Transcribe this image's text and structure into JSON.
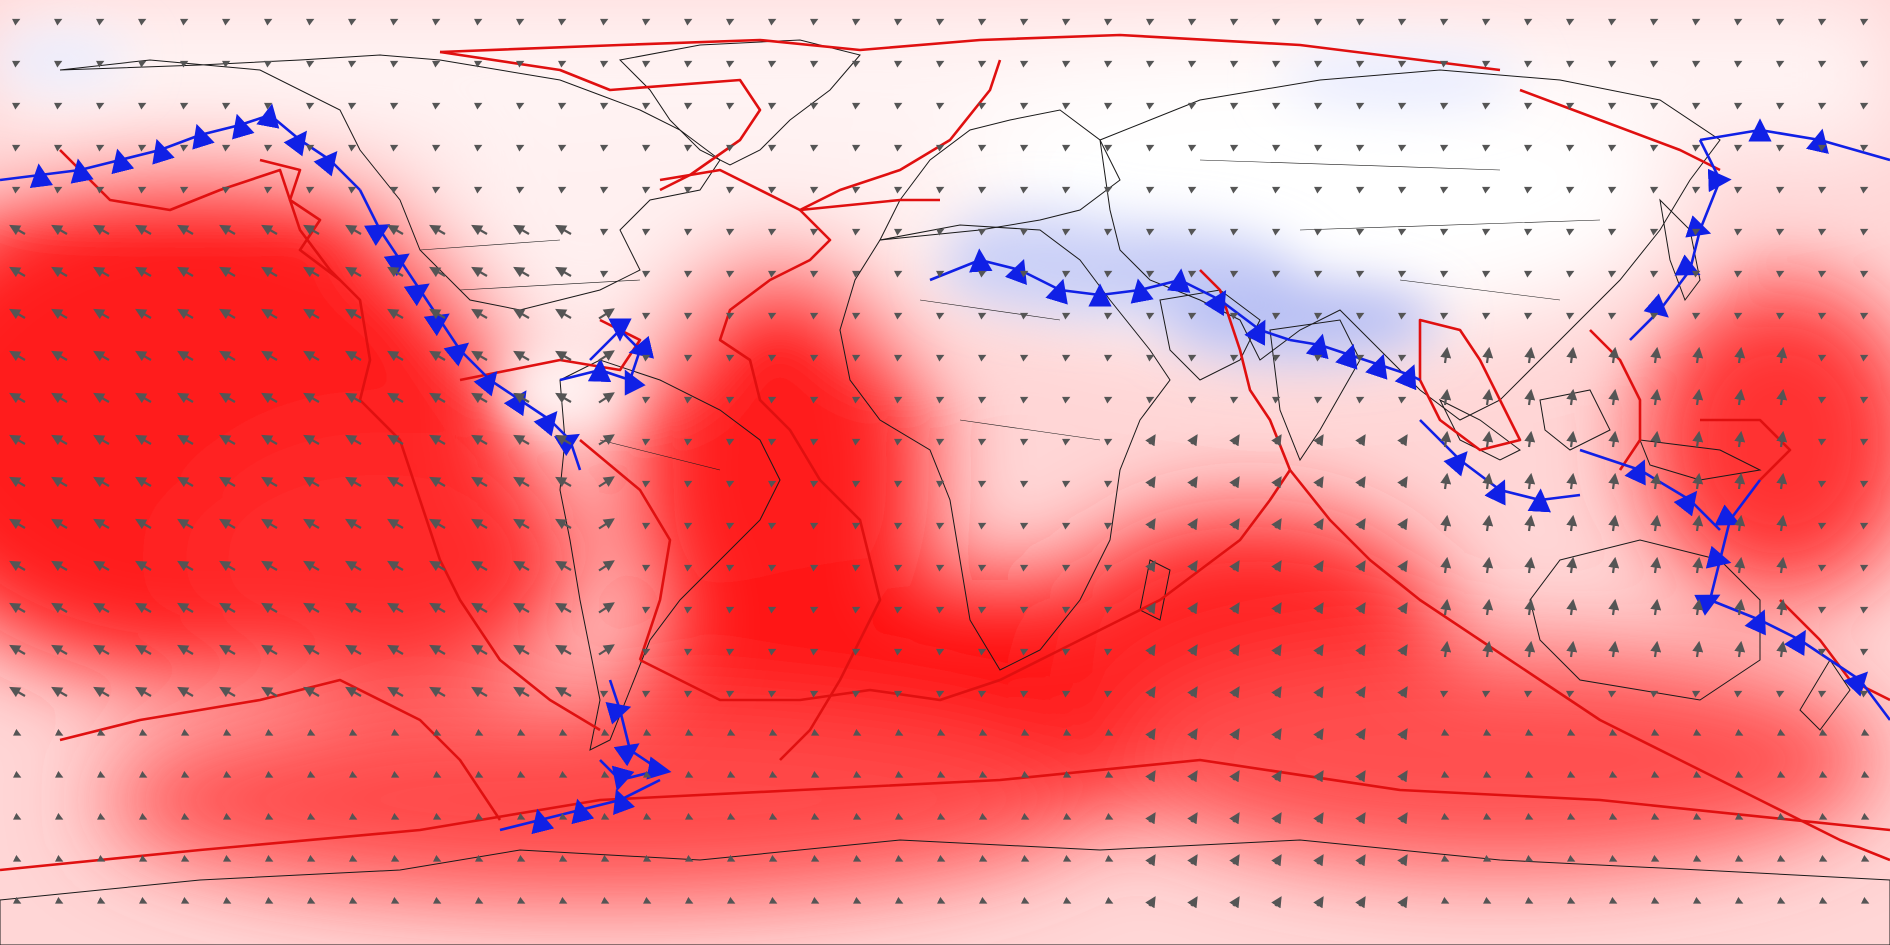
{
  "map": {
    "projection": "equirectangular",
    "colors": {
      "background": "#ffffff",
      "heat_strong": "#ff1010",
      "heat_mid": "#ff5a5a",
      "heat_light": "#ffb4b4",
      "heat_faint": "#ffe2e2",
      "cool_light": "#e6ecff",
      "cool_mid": "#b4bcf4",
      "ridge_boundary": "#e01010",
      "subduction_boundary": "#1020e6",
      "coastline": "#1a1a1a",
      "velocity_arrow": "#555555"
    },
    "layers": [
      "scalar-field",
      "coastlines",
      "plate-boundaries",
      "subduction-zones",
      "velocity-arrows"
    ],
    "arrow_field": {
      "description_shown": false,
      "icon": "velocity-arrow-icon"
    }
  }
}
